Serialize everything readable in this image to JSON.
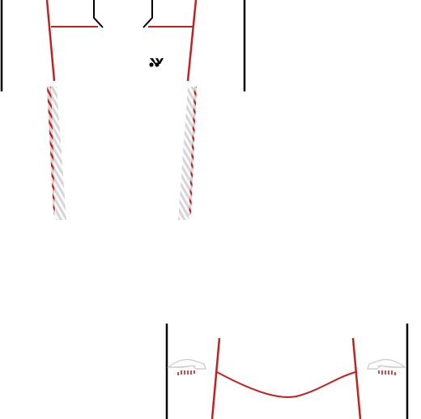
{
  "template": {
    "kind": "sports-shirt-texture-template",
    "colors": {
      "background": "#ffffff",
      "outline": "#000000",
      "accent": "#c42020",
      "stripe_light": "#d6d6d6"
    },
    "icons": {
      "logo": "yonex-style-logo-icon",
      "left_sleeve_pattern": "feather-pattern-icon",
      "right_sleeve_pattern": "feather-pattern-icon"
    }
  }
}
